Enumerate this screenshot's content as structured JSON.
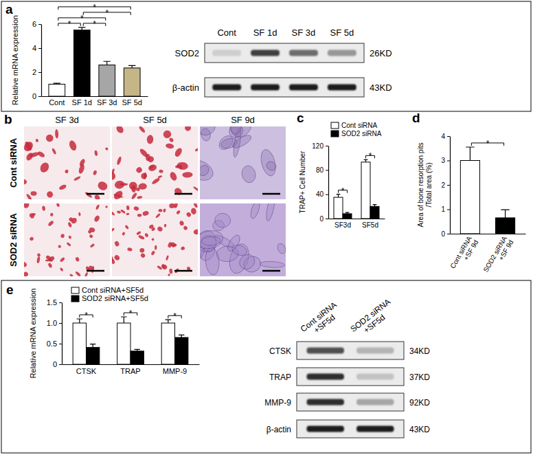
{
  "panel_labels": [
    "a",
    "b",
    "c",
    "d",
    "e"
  ],
  "chart_data": [
    {
      "type": "bar",
      "y_label": "Relative mRNA expression",
      "categories": [
        "Cont",
        "SF 1d",
        "SF 3d",
        "SF 5d"
      ],
      "values": [
        1.0,
        5.5,
        2.6,
        2.35
      ],
      "errors": [
        0.08,
        0.22,
        0.3,
        0.2
      ],
      "colors": [
        "#ffffff",
        "#000000",
        "#a6a6a6",
        "#c4b687"
      ],
      "ylim": [
        0,
        6
      ],
      "yticks": [
        0,
        2,
        4,
        6
      ],
      "annotations": [
        {
          "text": "*",
          "between": [
            "Cont",
            "SF 1d"
          ]
        },
        {
          "text": "*",
          "between": [
            "SF 1d",
            "SF 3d"
          ]
        },
        {
          "text": "*",
          "between": [
            "Cont",
            "SF 3d"
          ]
        },
        {
          "text": "*",
          "between": [
            "SF 1d",
            "SF 5d"
          ]
        },
        {
          "text": "*",
          "between": [
            "Cont",
            "SF 5d"
          ]
        }
      ]
    },
    {
      "type": "bar",
      "y_label": "TRAP+ Cell Number",
      "categories": [
        "SF3d",
        "SF5d"
      ],
      "series": [
        {
          "name": "Cont siRNA",
          "color": "#ffffff",
          "values": [
            35,
            93
          ],
          "errors": [
            5,
            4
          ]
        },
        {
          "name": "SOD2 siRNA",
          "color": "#000000",
          "values": [
            8,
            20
          ],
          "errors": [
            2,
            3
          ]
        }
      ],
      "ylim": [
        0,
        120
      ],
      "yticks": [
        0,
        40,
        80,
        120
      ],
      "legend": "top-left",
      "annotations": [
        {
          "text": "*",
          "category": "SF3d"
        },
        {
          "text": "*",
          "category": "SF5d"
        }
      ]
    },
    {
      "type": "bar",
      "y_label": [
        "Area of bone resorption pits",
        "/Total area (%)"
      ],
      "categories": [
        "Cont siRNA +SF 9d",
        "SOD2 siRNA +SF 9d"
      ],
      "values": [
        3.0,
        0.65
      ],
      "errors": [
        0.55,
        0.33
      ],
      "colors": [
        "#ffffff",
        "#000000"
      ],
      "ylim": [
        0,
        4
      ],
      "yticks": [
        0,
        1,
        2,
        3,
        4
      ],
      "annotations": [
        {
          "text": "*",
          "between": [
            "Cont siRNA +SF 9d",
            "SOD2 siRNA +SF 9d"
          ]
        }
      ]
    },
    {
      "type": "bar",
      "y_label": "Relative mRNA expression",
      "categories": [
        "CTSK",
        "TRAP",
        "MMP-9"
      ],
      "series": [
        {
          "name": "Cont siRNA+SF5d",
          "color": "#ffffff",
          "values": [
            1.0,
            1.0,
            1.0
          ],
          "errors": [
            0.1,
            0.15,
            0.08
          ]
        },
        {
          "name": "SOD2 siRNA+SF5d",
          "color": "#000000",
          "values": [
            0.41,
            0.32,
            0.65
          ],
          "errors": [
            0.08,
            0.04,
            0.06
          ]
        }
      ],
      "ylim": [
        0,
        1.5
      ],
      "yticks": [
        0,
        0.5,
        {
          "value": 1,
          "label": "1.0"
        },
        1.5
      ],
      "legend": "top-left",
      "annotations": [
        {
          "text": "*",
          "category": "CTSK"
        },
        {
          "text": "*",
          "category": "TRAP"
        },
        {
          "text": "*",
          "category": "MMP-9"
        }
      ]
    }
  ],
  "blots": [
    {
      "lanes": [
        "Cont",
        "SF 1d",
        "SF 3d",
        "SF 5d"
      ],
      "rows": [
        {
          "protein": "SOD2",
          "size": "26KD",
          "intensity": [
            0.3,
            0.8,
            0.65,
            0.5
          ]
        },
        {
          "protein": "β-actin",
          "size": "43KD",
          "intensity": [
            0.9,
            0.9,
            0.9,
            0.9
          ]
        }
      ]
    },
    {
      "lanes": [
        "Cont siRNA +SF5d",
        "SOD2 siRNA +SF5d"
      ],
      "rows": [
        {
          "protein": "CTSK",
          "size": "34KD",
          "intensity": [
            0.75,
            0.4
          ]
        },
        {
          "protein": "TRAP",
          "size": "37KD",
          "intensity": [
            0.85,
            0.35
          ]
        },
        {
          "protein": "MMP-9",
          "size": "92KD",
          "intensity": [
            0.85,
            0.45
          ]
        },
        {
          "protein": "β-actin",
          "size": "43KD",
          "intensity": [
            0.9,
            0.9
          ]
        }
      ]
    }
  ],
  "micrographs": {
    "columns": [
      "SF 3d",
      "SF 5d",
      "SF 9d"
    ],
    "rows": [
      "Cont siRNA",
      "SOD2 siRNA"
    ]
  }
}
